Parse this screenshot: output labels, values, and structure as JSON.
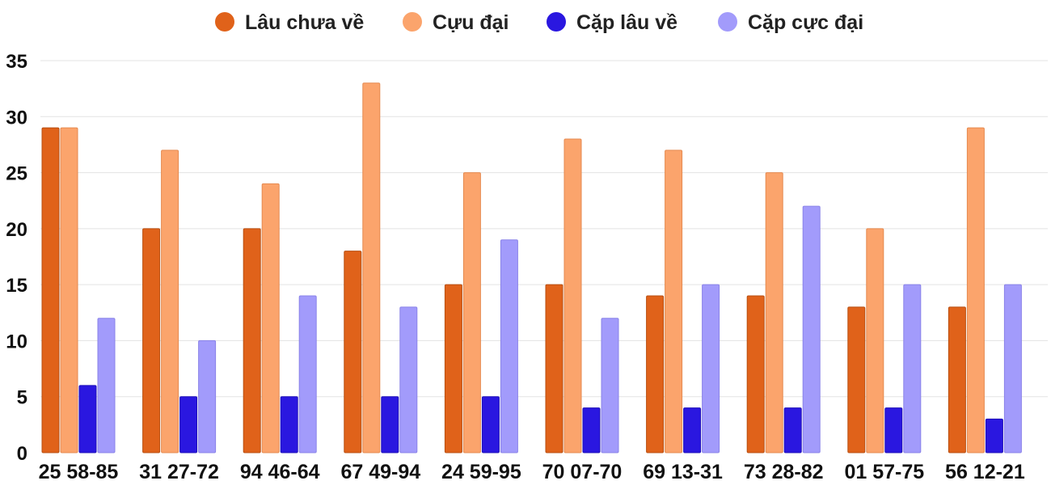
{
  "chart_data": {
    "type": "bar",
    "title": "",
    "xlabel": "",
    "ylabel": "",
    "ylim": [
      0,
      35
    ],
    "yticks": [
      0,
      5,
      10,
      15,
      20,
      25,
      30,
      35
    ],
    "grid": true,
    "legend_position": "top-center",
    "categories": [
      "25 58-85",
      "31 27-72",
      "94 46-64",
      "67 49-94",
      "24 59-95",
      "70 07-70",
      "69 13-31",
      "73 28-82",
      "01 57-75",
      "56 12-21"
    ],
    "series": [
      {
        "name": "Lâu chưa về",
        "color": "#e0621a",
        "border": "#b84e10",
        "values": [
          29,
          20,
          20,
          18,
          15,
          15,
          14,
          14,
          13,
          13
        ]
      },
      {
        "name": "Cựu đại",
        "color": "#fba46c",
        "border": "#e58a50",
        "values": [
          29,
          27,
          24,
          33,
          25,
          28,
          27,
          25,
          20,
          29
        ]
      },
      {
        "name": "Cặp lâu về",
        "color": "#2a17e0",
        "border": "#1e0fb8",
        "values": [
          6,
          5,
          5,
          5,
          5,
          4,
          4,
          4,
          4,
          3
        ]
      },
      {
        "name": "Cặp cực đại",
        "color": "#a29bfb",
        "border": "#8a83e8",
        "values": [
          12,
          10,
          14,
          13,
          19,
          12,
          15,
          22,
          15,
          15
        ]
      }
    ]
  }
}
